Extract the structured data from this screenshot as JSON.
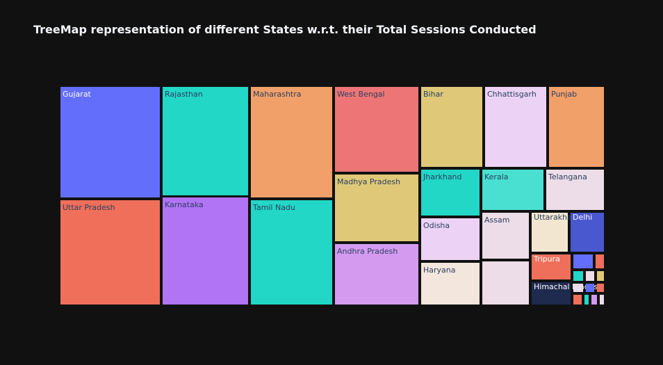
{
  "title": "TreeMap representation of different States w.r.t. their Total Sessions Conducted",
  "chart_data": {
    "type": "treemap",
    "title": "TreeMap representation of different States w.r.t. their Total Sessions Conducted",
    "tiles": [
      {
        "label": "Gujarat",
        "value": 45200,
        "color": "#636efa",
        "textColor": "#ffffff"
      },
      {
        "label": "Uttar Pradesh",
        "value": 44800,
        "color": "#ef6f5a",
        "textColor": "#2a3f5f"
      },
      {
        "label": "Rajasthan",
        "value": 39500,
        "color": "#22d7c6",
        "textColor": "#2a3f5f"
      },
      {
        "label": "Karnataka",
        "value": 39300,
        "color": "#b074f5",
        "textColor": "#2a3f5f"
      },
      {
        "label": "Maharashtra",
        "value": 37500,
        "color": "#f2a06a",
        "textColor": "#2a3f5f"
      },
      {
        "label": "Tamil Nadu",
        "value": 35200,
        "color": "#22d7c6",
        "textColor": "#2a3f5f"
      },
      {
        "label": "West Bengal",
        "value": 28200,
        "color": "#ee7576",
        "textColor": "#2a3f5f"
      },
      {
        "label": "Madhya Pradesh",
        "value": 22800,
        "color": "#dfc978",
        "textColor": "#2a3f5f"
      },
      {
        "label": "Andhra Pradesh",
        "value": 20400,
        "color": "#d49af0",
        "textColor": "#2a3f5f"
      },
      {
        "label": "Bihar",
        "value": 16500,
        "color": "#dfc978",
        "textColor": "#2a3f5f"
      },
      {
        "label": "Chhattisgarh",
        "value": 15700,
        "color": "#ecd3f5",
        "textColor": "#2a3f5f"
      },
      {
        "label": "Punjab",
        "value": 14100,
        "color": "#f2a06a",
        "textColor": "#2a3f5f"
      },
      {
        "label": "Jharkhand",
        "value": 11900,
        "color": "#22d7c6",
        "textColor": "#2a3f5f"
      },
      {
        "label": "Kerala",
        "value": 10000,
        "color": "#49e0d2",
        "textColor": "#2a3f5f"
      },
      {
        "label": "Telangana",
        "value": 8900,
        "color": "#ecdde8",
        "textColor": "#2a3f5f"
      },
      {
        "label": "Odisha",
        "value": 10100,
        "color": "#ecd3f5",
        "textColor": "#2a3f5f"
      },
      {
        "label": "Haryana",
        "value": 10000,
        "color": "#f3e6dc",
        "textColor": "#2a3f5f"
      },
      {
        "label": "Assam",
        "value": 7900,
        "color": "#ecdde8",
        "textColor": "#2a3f5f"
      },
      {
        "label": "Uttarakhand",
        "value": 5400,
        "color": "#f3e6d0",
        "textColor": "#2a3f5f"
      },
      {
        "label": "Delhi",
        "value": 5500,
        "color": "#4a58d0",
        "textColor": "#ffffff"
      },
      {
        "label": "Tripura",
        "value": 3500,
        "color": "#ef6f5a",
        "textColor": "#ffffff"
      },
      {
        "label": "Himachal Pradesh",
        "value": 2800,
        "color": "#1f2a4f",
        "textColor": "#ffffff"
      }
    ]
  }
}
